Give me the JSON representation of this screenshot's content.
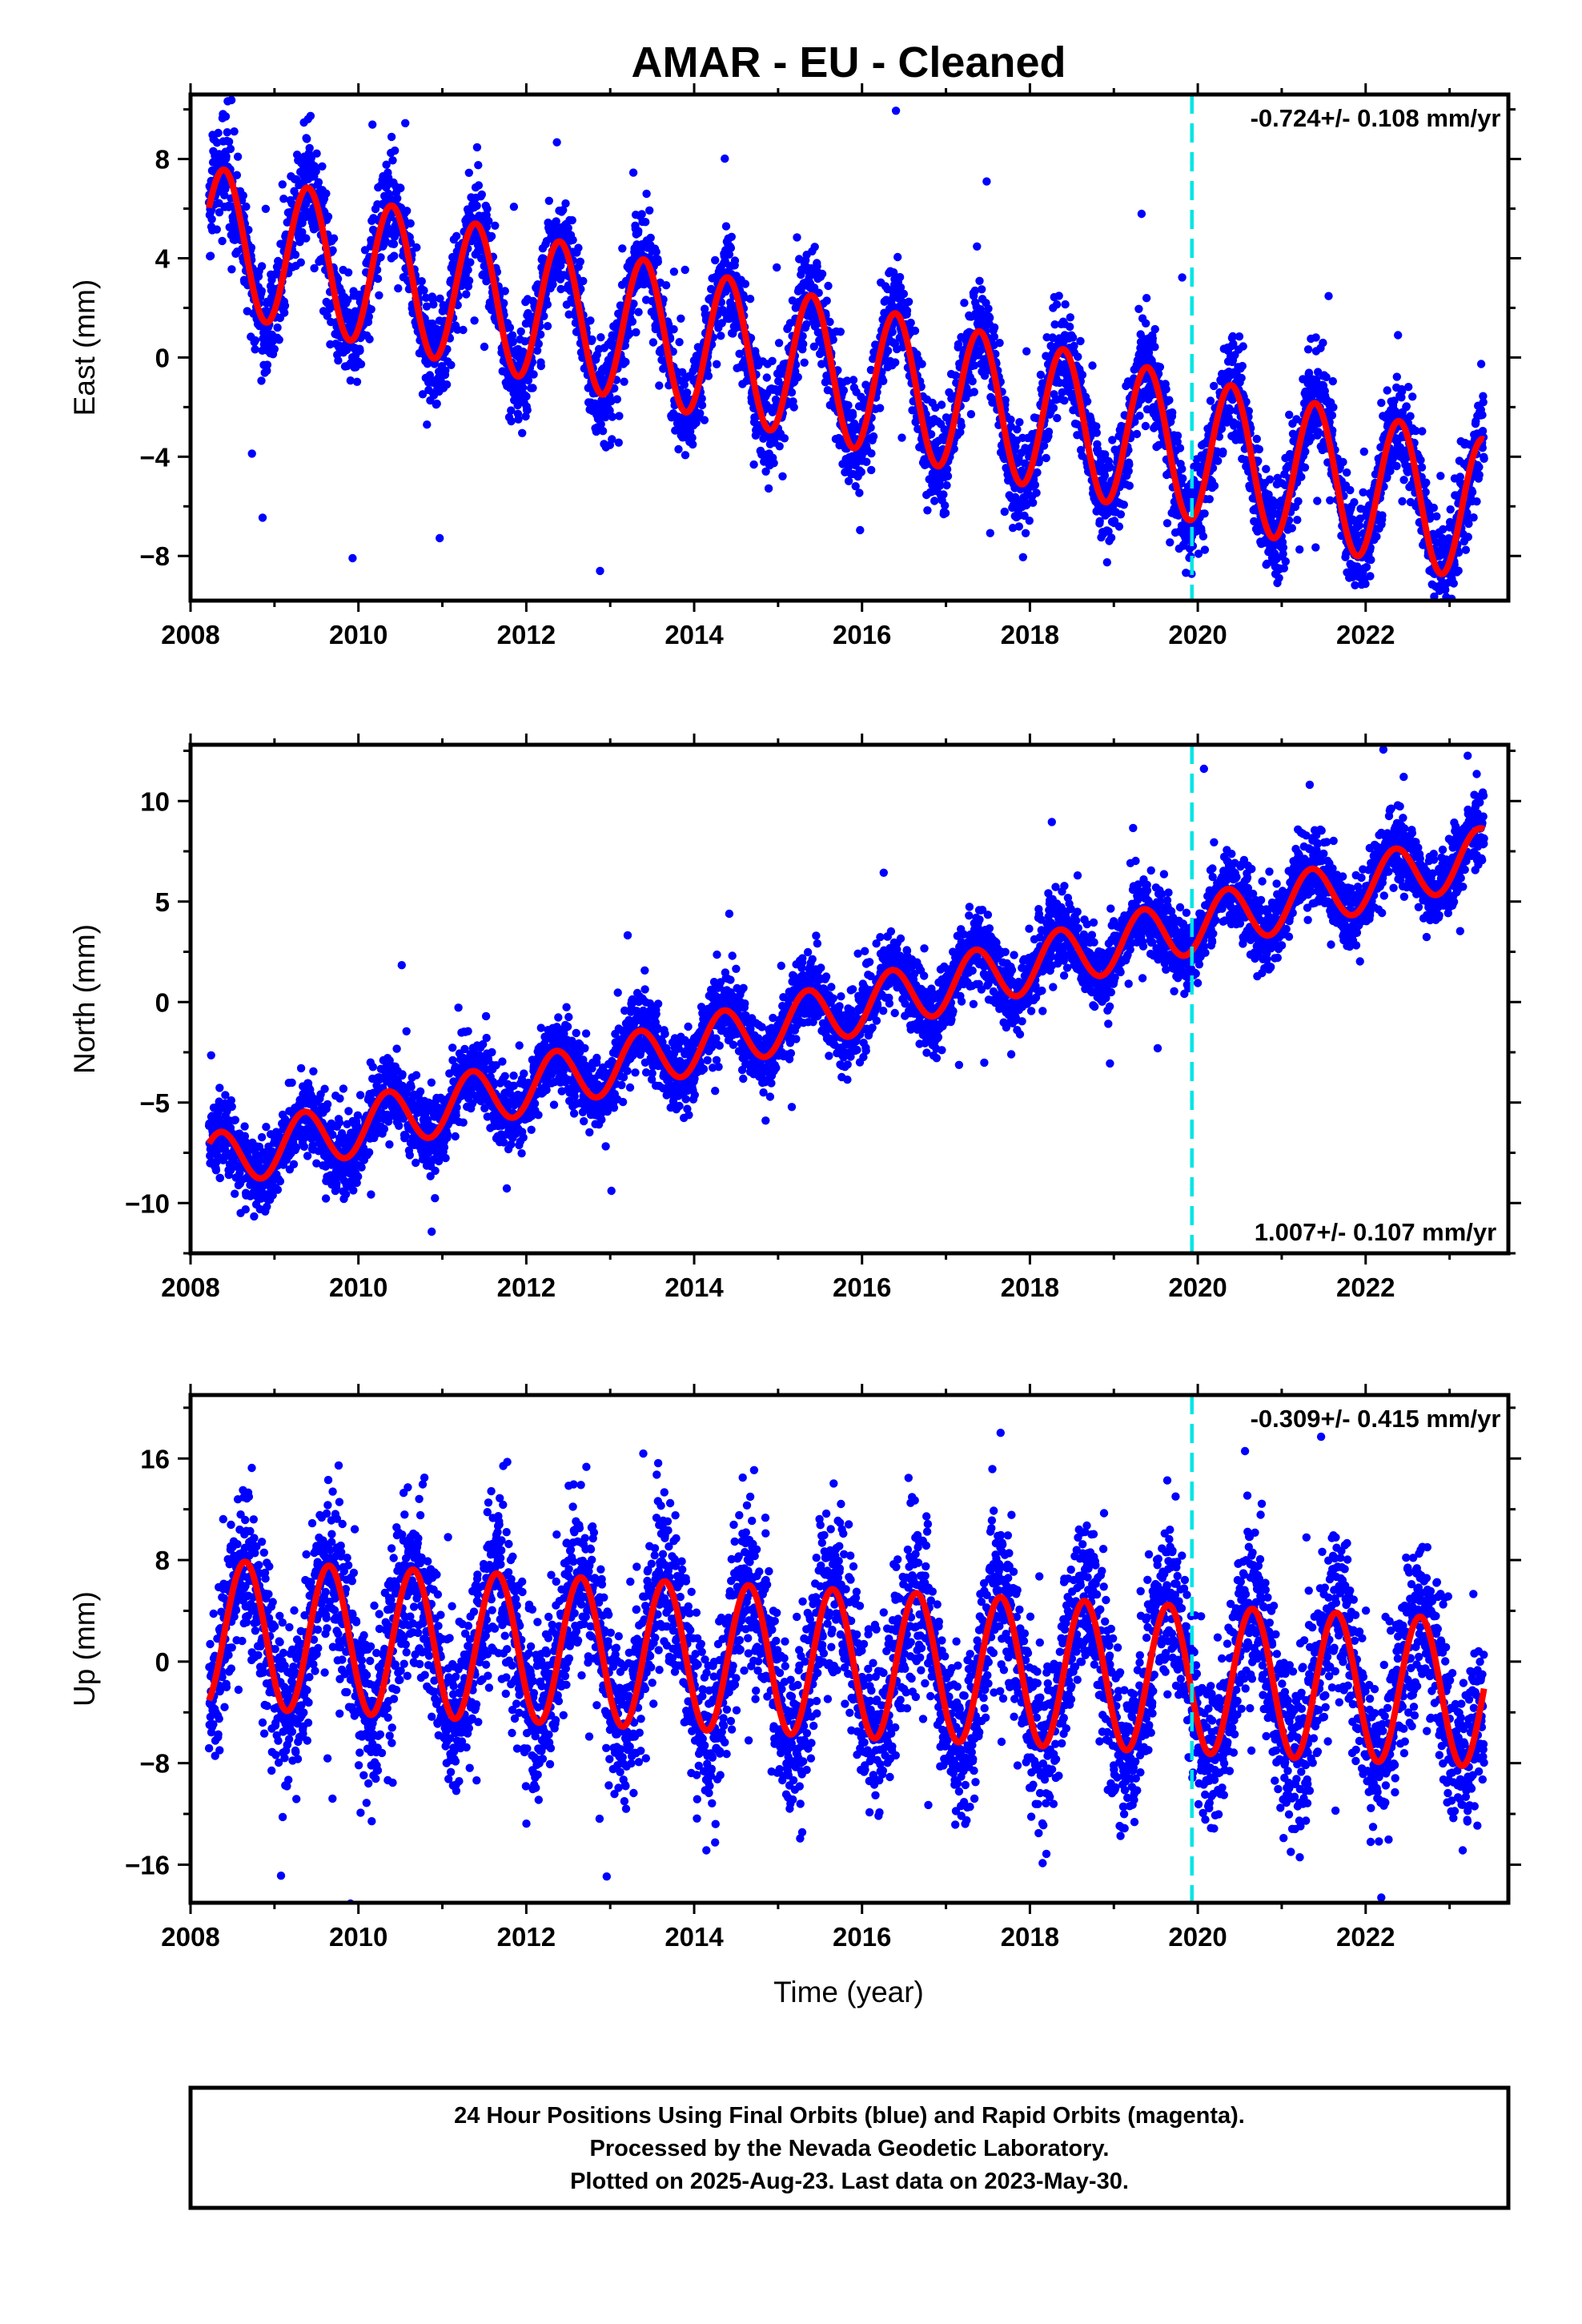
{
  "chart_data": {
    "type": "scatter",
    "title": "AMAR  - EU - Cleaned",
    "xlabel": "Time (year)",
    "xlim": [
      2008,
      2023.7
    ],
    "xticks": [
      2008,
      2010,
      2012,
      2014,
      2016,
      2018,
      2020,
      2022
    ],
    "reference_epoch": 2019.93,
    "colors": {
      "final_orbits": "#0000ff",
      "model_fit": "#ff0000",
      "epoch_line": "#00e5e5"
    },
    "panels": [
      {
        "component": "East",
        "ylabel": "East (mm)",
        "ylim": [
          -9.8,
          10.6
        ],
        "yticks": [
          -8,
          -4,
          0,
          4,
          8
        ],
        "rate_label": "-0.724+/- 0.108 mm/yr",
        "rate_position": "top-right",
        "model": {
          "start": 2008.22,
          "end": 2023.41,
          "offset": 4.8,
          "trend": -0.724,
          "amplitude": 2.9,
          "peak_phase": 0.4
        },
        "scatter": {
          "noise": 1.0,
          "outliers": 3.5
        }
      },
      {
        "component": "North",
        "ylabel": "North (mm)",
        "ylim": [
          -12.5,
          12.8
        ],
        "yticks": [
          -10,
          -5,
          0,
          5,
          10
        ],
        "rate_label": "1.007+/- 0.107 mm/yr",
        "rate_position": "bottom-right",
        "model": {
          "start": 2008.22,
          "end": 2023.41,
          "offset": -8.0,
          "trend": 1.007,
          "amplitude": 1.4,
          "peak_phase": 0.35
        },
        "scatter": {
          "noise": 0.9,
          "outliers": 3.0
        }
      },
      {
        "component": "Up",
        "ylabel": "Up (mm)",
        "ylim": [
          -19,
          21
        ],
        "yticks": [
          -16,
          -8,
          0,
          8,
          16
        ],
        "rate_label": "-0.309+/- 0.415 mm/yr",
        "rate_position": "top-right",
        "model": {
          "start": 2008.22,
          "end": 2023.41,
          "offset": 2.2,
          "trend": -0.309,
          "amplitude": 5.8,
          "peak_phase": 0.65
        },
        "scatter": {
          "noise": 3.3,
          "outliers": 9.0
        }
      }
    ]
  },
  "footer": {
    "line1": "24 Hour Positions Using Final Orbits (blue) and Rapid Orbits (magenta).",
    "line2": "Processed by the Nevada Geodetic Laboratory.",
    "line3": "Plotted on 2025-Aug-23. Last data on 2023-May-30."
  }
}
